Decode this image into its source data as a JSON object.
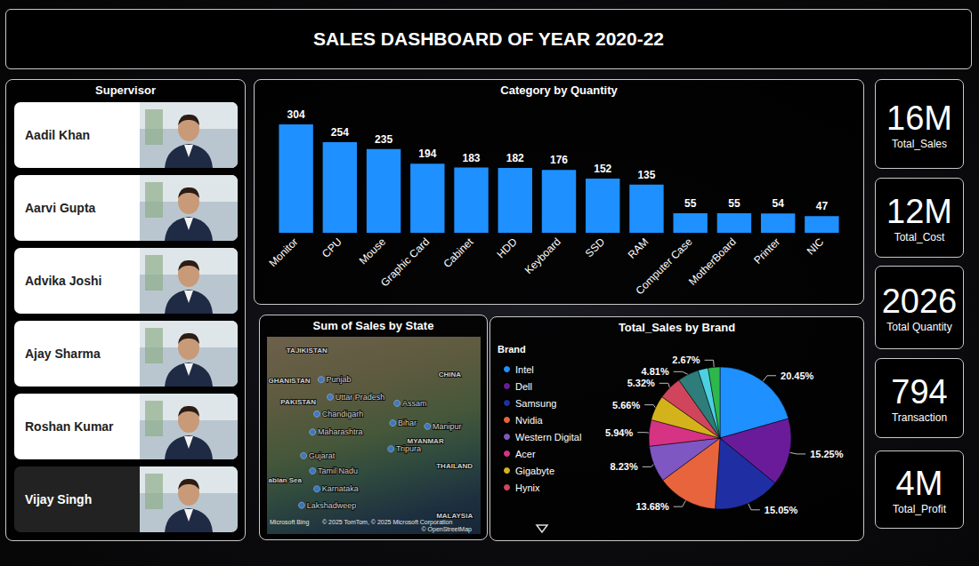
{
  "header": {
    "title": "SALES DASHBOARD OF YEAR 2020-22"
  },
  "supervisor": {
    "title": "Supervisor",
    "names": [
      "Aadil Khan",
      "Aarvi Gupta",
      "Advika Joshi",
      "Ajay Sharma",
      "Roshan Kumar",
      "Vijay Singh"
    ],
    "selected": "Vijay Singh"
  },
  "kpis": [
    {
      "value": "16M",
      "label": "Total_Sales"
    },
    {
      "value": "12M",
      "label": "Total_Cost"
    },
    {
      "value": "2026",
      "label": "Total Quantity"
    },
    {
      "value": "794",
      "label": "Transaction"
    },
    {
      "value": "4M",
      "label": "Total_Profit"
    }
  ],
  "chart_data": [
    {
      "type": "bar",
      "title": "Category by Quantity",
      "categories": [
        "Monitor",
        "CPU",
        "Mouse",
        "Graphic Card",
        "Cabinet",
        "HDD",
        "Keyboard",
        "SSD",
        "RAM",
        "Computer Case",
        "MotherBoard",
        "Printer",
        "NIC"
      ],
      "values": [
        304,
        254,
        235,
        194,
        183,
        182,
        176,
        152,
        135,
        55,
        55,
        54,
        47
      ],
      "color": "#1e90ff",
      "ylim": [
        0,
        304
      ],
      "data_labels": true,
      "tick_labels": "x",
      "grid": false
    },
    {
      "type": "map",
      "title": "Sum of Sales by State",
      "points": [
        {
          "name": "Punjab",
          "lon": 71.4,
          "lat": 32.4
        },
        {
          "name": "Uttar Pradesh",
          "lon": 73.3,
          "lat": 29.3
        },
        {
          "name": "Assam",
          "lon": 87.4,
          "lat": 28.2
        },
        {
          "name": "Chandigarh",
          "lon": 70.5,
          "lat": 26.3
        },
        {
          "name": "Bihar",
          "lon": 86.5,
          "lat": 24.7
        },
        {
          "name": "Manipur",
          "lon": 93.8,
          "lat": 24.1
        },
        {
          "name": "Maharashtra",
          "lon": 69.6,
          "lat": 23.1
        },
        {
          "name": "Tripura",
          "lon": 86.1,
          "lat": 20.1
        },
        {
          "name": "Gujarat",
          "lon": 67.7,
          "lat": 18.9
        },
        {
          "name": "Tamil Nadu",
          "lon": 69.6,
          "lat": 16.2
        },
        {
          "name": "Karnataka",
          "lon": 70.5,
          "lat": 13.0
        },
        {
          "name": "Lakshadweep",
          "lon": 67.3,
          "lat": 10.1
        }
      ],
      "place_labels": [
        {
          "name": "TAJIKISTAN",
          "lon": 68.4,
          "lat": 37.6
        },
        {
          "name": "GHANISTAN",
          "lon": 64.7,
          "lat": 32.2
        },
        {
          "name": "PAKISTAN",
          "lon": 66.6,
          "lat": 28.4
        },
        {
          "name": "CHINA",
          "lon": 98.5,
          "lat": 33.3
        },
        {
          "name": "MYANMAR",
          "lon": 93.4,
          "lat": 21.4
        },
        {
          "name": "THAILAND",
          "lon": 99.5,
          "lat": 17.1
        },
        {
          "name": "MALAYSIA",
          "lon": 99.5,
          "lat": 8.2
        },
        {
          "name": "abian Sea",
          "lon": 63.8,
          "lat": 14.6
        }
      ],
      "attribution": [
        "Microsoft Bing",
        "© 2025 TomTom, © 2025 Microsoft Corporation",
        "© OpenStreetMap"
      ],
      "color": "#3d7fe0",
      "xlim": [
        60,
        105
      ],
      "ylim": [
        5,
        40
      ],
      "tick_labels": false
    },
    {
      "type": "pie",
      "title": "Total_Sales by Brand",
      "legend_title": "Brand",
      "legend": "top-left",
      "categories": [
        "Intel",
        "Dell",
        "Samsung",
        "Nvidia",
        "Western Digital",
        "Acer",
        "Gigabyte",
        "Hynix",
        null,
        null,
        null
      ],
      "values": [
        20.45,
        15.25,
        15.05,
        13.68,
        8.23,
        5.94,
        5.66,
        5.32,
        4.81,
        2.27,
        2.67
      ],
      "value_labels": [
        "20.45%",
        "15.25%",
        "15.05%",
        "13.68%",
        "8.23%",
        "5.94%",
        "5.66%",
        "5.32%",
        "4.81%",
        null,
        "2.67%"
      ],
      "colors": [
        "#1e90ff",
        "#6a1b9a",
        "#1f2fa3",
        "#e8643c",
        "#7e57c2",
        "#d63384",
        "#d4b21c",
        "#d0455b",
        "#2e7d7a",
        "#4dd0e1",
        "#2eb84c"
      ],
      "data_labels": true
    }
  ]
}
